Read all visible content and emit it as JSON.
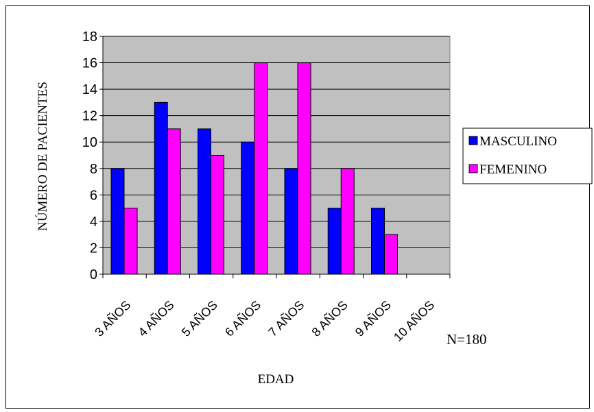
{
  "chart_data": {
    "type": "bar",
    "categories": [
      "3 AÑOS",
      "4 AÑOS",
      "5 AÑOS",
      "6 AÑOS",
      "7 AÑOS",
      "8 AÑOS",
      "9 AÑOS",
      "10 AÑOS"
    ],
    "series": [
      {
        "name": "MASCULINO",
        "color": "#0000FF",
        "values": [
          8,
          13,
          11,
          10,
          8,
          5,
          5,
          null
        ]
      },
      {
        "name": "FEMENINO",
        "color": "#FF00FF",
        "values": [
          5,
          11,
          9,
          16,
          16,
          8,
          3,
          null
        ]
      }
    ],
    "xlabel": "EDAD",
    "ylabel": "NÚMERO DE PACIENTES",
    "ylim": [
      0,
      18
    ],
    "yticks": [
      0,
      2,
      4,
      6,
      8,
      10,
      12,
      14,
      16,
      18
    ],
    "grid": true,
    "plot_background": "#C0C0C0",
    "legend_position": "right",
    "annotation": "N=180"
  }
}
